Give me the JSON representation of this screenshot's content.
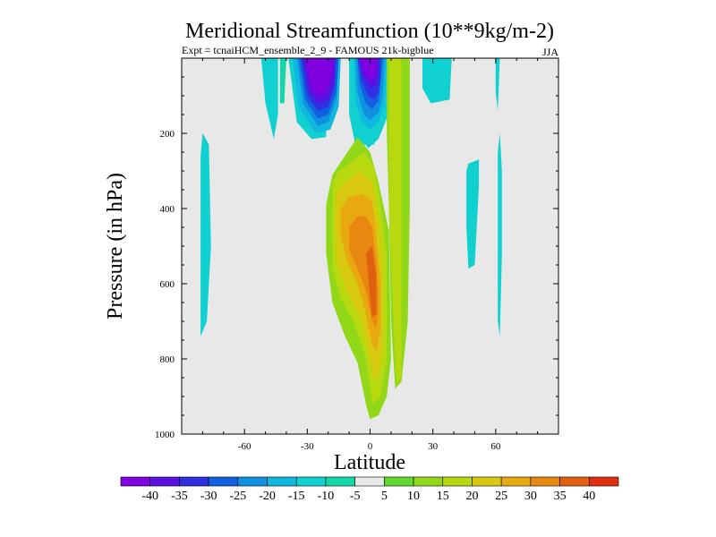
{
  "chart_data": {
    "type": "heatmap",
    "title": "Meridional Streamfunction (10**9kg/m-2)",
    "subtitle_left": "Expt = tcnaiHCM_ensemble_2_9 - FAMOUS 21k-bigblue",
    "subtitle_right": "JJA",
    "xlabel": "Latitude",
    "ylabel": "Pressure (in hPa)",
    "xlim": [
      -90,
      90
    ],
    "ylim": [
      1000,
      0
    ],
    "x_ticks": [
      -60,
      -30,
      0,
      30,
      60
    ],
    "x_tick_labels": [
      "-60",
      "-30",
      "0",
      "30",
      "60"
    ],
    "y_ticks": [
      200,
      400,
      600,
      800,
      1000
    ],
    "y_tick_labels": [
      "200",
      "400",
      "600",
      "800",
      "1000"
    ],
    "background_color": "#e8e8e8",
    "colorbar": {
      "colors": [
        "#8000e0",
        "#5a10e0",
        "#3030e0",
        "#1060e0",
        "#1090e0",
        "#10b8e0",
        "#10d0d0",
        "#10d8a8",
        "#e8e8e8",
        "#60d830",
        "#90d818",
        "#b8d810",
        "#d8c810",
        "#e8a810",
        "#e88810",
        "#e06010",
        "#e03010"
      ],
      "labels": [
        "-40",
        "-35",
        "-30",
        "-25",
        "-20",
        "-15",
        "-10",
        "-5",
        "5",
        "10",
        "15",
        "20",
        "25",
        "30",
        "35",
        "40"
      ]
    },
    "regions": [
      {
        "level": "-10",
        "points": [
          [
            -81,
            260
          ],
          [
            -80,
            200
          ],
          [
            -77,
            230
          ],
          [
            -76,
            500
          ],
          [
            -78,
            700
          ],
          [
            -81,
            740
          ],
          [
            -81,
            520
          ]
        ]
      },
      {
        "level": "-10",
        "points": [
          [
            -52,
            0
          ],
          [
            -50,
            120
          ],
          [
            -46,
            215
          ],
          [
            -44,
            150
          ],
          [
            -44,
            0
          ]
        ]
      },
      {
        "level": "-5",
        "points": [
          [
            -43,
            0
          ],
          [
            -43,
            120
          ],
          [
            -41,
            120
          ],
          [
            -40,
            0
          ]
        ]
      },
      {
        "level": "-10",
        "points": [
          [
            -39,
            0
          ],
          [
            -35,
            170
          ],
          [
            -28,
            215
          ],
          [
            -21,
            210
          ],
          [
            -21,
            0
          ]
        ]
      },
      {
        "level": "-10",
        "points": [
          [
            -10,
            0
          ],
          [
            -10,
            150
          ],
          [
            -7,
            230
          ],
          [
            2,
            230
          ],
          [
            4,
            160
          ],
          [
            5,
            0
          ]
        ]
      },
      {
        "level": "-15",
        "points": [
          [
            -37,
            0
          ],
          [
            -34,
            130
          ],
          [
            -26,
            200
          ],
          [
            -19,
            190
          ],
          [
            -15,
            130
          ],
          [
            -14,
            0
          ]
        ]
      },
      {
        "level": "-20",
        "points": [
          [
            -35,
            0
          ],
          [
            -32,
            120
          ],
          [
            -25,
            180
          ],
          [
            -20,
            170
          ],
          [
            -16,
            110
          ],
          [
            -15,
            0
          ]
        ]
      },
      {
        "level": "-25",
        "points": [
          [
            -34,
            0
          ],
          [
            -31,
            110
          ],
          [
            -25,
            160
          ],
          [
            -20,
            150
          ],
          [
            -16,
            90
          ],
          [
            -15,
            0
          ]
        ]
      },
      {
        "level": "-30",
        "points": [
          [
            -33,
            0
          ],
          [
            -30,
            100
          ],
          [
            -25,
            140
          ],
          [
            -20,
            130
          ],
          [
            -17,
            80
          ],
          [
            -16,
            0
          ]
        ]
      },
      {
        "level": "-35",
        "points": [
          [
            -32,
            0
          ],
          [
            -29,
            90
          ],
          [
            -25,
            120
          ],
          [
            -20,
            110
          ],
          [
            -17,
            60
          ],
          [
            -17,
            0
          ]
        ]
      },
      {
        "level": "-40",
        "points": [
          [
            -31,
            0
          ],
          [
            -28,
            80
          ],
          [
            -25,
            100
          ],
          [
            -21,
            90
          ],
          [
            -18,
            40
          ],
          [
            -18,
            0
          ]
        ]
      },
      {
        "level": "-10",
        "points": [
          [
            -9,
            0
          ],
          [
            -8,
            130
          ],
          [
            -6,
            190
          ],
          [
            -1,
            240
          ],
          [
            4,
            215
          ],
          [
            8,
            160
          ],
          [
            10,
            0
          ]
        ]
      },
      {
        "level": "-15",
        "points": [
          [
            -8,
            0
          ],
          [
            -7,
            110
          ],
          [
            -4,
            170
          ],
          [
            0,
            190
          ],
          [
            4,
            170
          ],
          [
            7,
            120
          ],
          [
            8,
            0
          ]
        ]
      },
      {
        "level": "-20",
        "points": [
          [
            -7,
            0
          ],
          [
            -6,
            90
          ],
          [
            -3,
            150
          ],
          [
            0,
            165
          ],
          [
            4,
            145
          ],
          [
            6,
            100
          ],
          [
            7,
            0
          ]
        ]
      },
      {
        "level": "-25",
        "points": [
          [
            -6,
            0
          ],
          [
            -5,
            70
          ],
          [
            -2,
            120
          ],
          [
            1,
            135
          ],
          [
            4,
            115
          ],
          [
            5,
            70
          ],
          [
            6,
            0
          ]
        ]
      },
      {
        "level": "-30",
        "points": [
          [
            -6,
            0
          ],
          [
            -4,
            60
          ],
          [
            -1,
            100
          ],
          [
            2,
            110
          ],
          [
            4,
            90
          ],
          [
            5,
            50
          ],
          [
            5,
            0
          ]
        ]
      },
      {
        "level": "-35",
        "points": [
          [
            -5,
            0
          ],
          [
            -4,
            40
          ],
          [
            0,
            80
          ],
          [
            3,
            70
          ],
          [
            4,
            40
          ],
          [
            4,
            0
          ]
        ]
      },
      {
        "level": "-40",
        "points": [
          [
            -5,
            0
          ],
          [
            -3,
            30
          ],
          [
            0,
            60
          ],
          [
            3,
            40
          ],
          [
            3,
            0
          ]
        ]
      },
      {
        "level": "10",
        "points": [
          [
            -21,
            390
          ],
          [
            -18,
            310
          ],
          [
            -12,
            260
          ],
          [
            -6,
            210
          ],
          [
            0,
            250
          ],
          [
            4,
            330
          ],
          [
            9,
            460
          ],
          [
            10,
            800
          ],
          [
            8,
            900
          ],
          [
            4,
            950
          ],
          [
            0,
            960
          ],
          [
            -2,
            920
          ],
          [
            -6,
            810
          ],
          [
            -12,
            740
          ],
          [
            -18,
            650
          ],
          [
            -21,
            520
          ]
        ]
      },
      {
        "level": "15",
        "points": [
          [
            -18,
            330
          ],
          [
            -15,
            300
          ],
          [
            -10,
            280
          ],
          [
            -3,
            250
          ],
          [
            2,
            290
          ],
          [
            5,
            390
          ],
          [
            8,
            520
          ],
          [
            8,
            800
          ],
          [
            5,
            900
          ],
          [
            1,
            920
          ],
          [
            0,
            870
          ],
          [
            -3,
            780
          ],
          [
            -8,
            700
          ],
          [
            -14,
            640
          ],
          [
            -18,
            560
          ],
          [
            -18,
            440
          ]
        ]
      },
      {
        "level": "20",
        "points": [
          [
            -16,
            360
          ],
          [
            -12,
            330
          ],
          [
            -5,
            300
          ],
          [
            1,
            330
          ],
          [
            4,
            430
          ],
          [
            6,
            560
          ],
          [
            6,
            770
          ],
          [
            4,
            840
          ],
          [
            2,
            860
          ],
          [
            0,
            800
          ],
          [
            -4,
            700
          ],
          [
            -11,
            620
          ],
          [
            -16,
            540
          ],
          [
            -17,
            440
          ]
        ]
      },
      {
        "level": "25",
        "points": [
          [
            -14,
            400
          ],
          [
            -10,
            370
          ],
          [
            -4,
            360
          ],
          [
            1,
            380
          ],
          [
            3,
            470
          ],
          [
            5,
            600
          ],
          [
            5,
            720
          ],
          [
            3,
            780
          ],
          [
            1,
            760
          ],
          [
            -2,
            680
          ],
          [
            -6,
            600
          ],
          [
            -11,
            540
          ],
          [
            -14,
            470
          ]
        ]
      },
      {
        "level": "30",
        "points": [
          [
            -10,
            450
          ],
          [
            -6,
            420
          ],
          [
            -2,
            420
          ],
          [
            1,
            450
          ],
          [
            3,
            540
          ],
          [
            4,
            650
          ],
          [
            3,
            720
          ],
          [
            1,
            700
          ],
          [
            -2,
            620
          ],
          [
            -6,
            560
          ],
          [
            -10,
            510
          ]
        ]
      },
      {
        "level": "35",
        "points": [
          [
            -2,
            520
          ],
          [
            1,
            500
          ],
          [
            3,
            580
          ],
          [
            3,
            680
          ],
          [
            1,
            690
          ],
          [
            0,
            640
          ],
          [
            -1,
            570
          ]
        ]
      },
      {
        "level": "10",
        "points": [
          [
            8,
            0
          ],
          [
            8,
            200
          ],
          [
            9,
            400
          ],
          [
            10,
            700
          ],
          [
            12,
            880
          ],
          [
            15,
            860
          ],
          [
            18,
            700
          ],
          [
            19,
            400
          ],
          [
            19,
            100
          ],
          [
            19,
            0
          ]
        ]
      },
      {
        "level": "15",
        "points": [
          [
            9,
            0
          ],
          [
            9,
            400
          ],
          [
            12,
            800
          ],
          [
            13,
            870
          ],
          [
            15,
            840
          ],
          [
            15,
            0
          ]
        ]
      },
      {
        "level": "-10",
        "points": [
          [
            25,
            0
          ],
          [
            25,
            80
          ],
          [
            29,
            120
          ],
          [
            38,
            110
          ],
          [
            39,
            0
          ]
        ]
      },
      {
        "level": "-10",
        "points": [
          [
            46,
            300
          ],
          [
            47,
            280
          ],
          [
            52,
            270
          ],
          [
            52,
            340
          ],
          [
            50,
            550
          ],
          [
            47,
            560
          ],
          [
            46,
            450
          ]
        ]
      },
      {
        "level": "-10",
        "points": [
          [
            60,
            0
          ],
          [
            60,
            90
          ],
          [
            61,
            140
          ],
          [
            62,
            0
          ]
        ]
      },
      {
        "level": "-10",
        "points": [
          [
            61,
            250
          ],
          [
            62,
            200
          ],
          [
            63,
            300
          ],
          [
            63,
            520
          ],
          [
            62,
            740
          ],
          [
            61,
            700
          ],
          [
            61,
            400
          ]
        ]
      }
    ]
  }
}
